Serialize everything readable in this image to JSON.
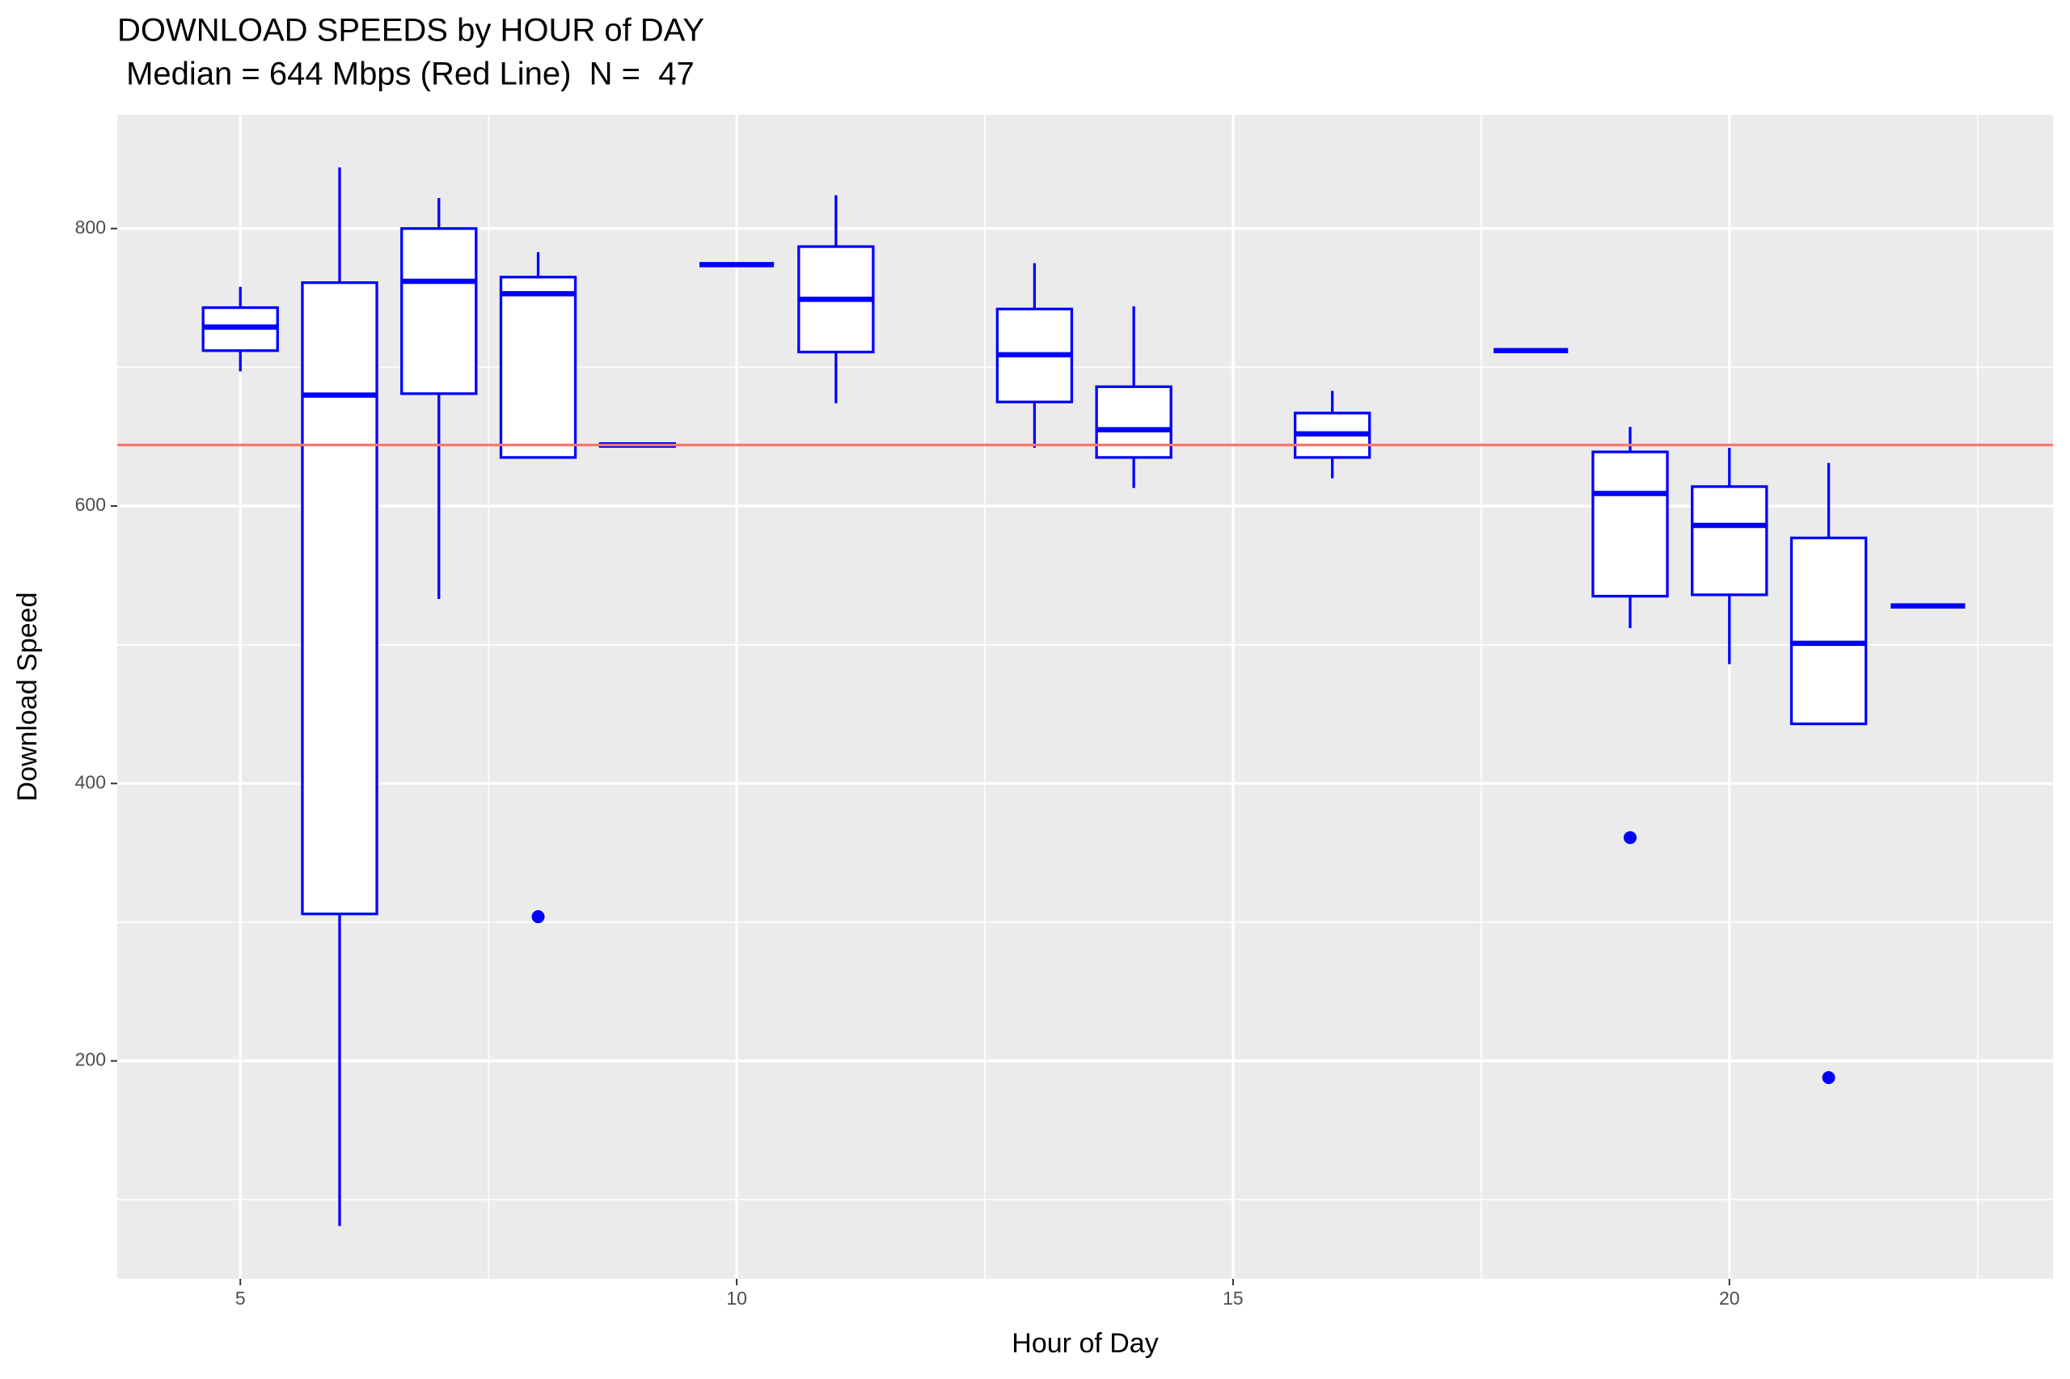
{
  "chart_data": {
    "type": "box",
    "title": "DOWNLOAD SPEEDS by HOUR of DAY",
    "subtitle": " Median = 644 Mbps (Red Line)  N =  47",
    "x_label": "Hour of Day",
    "y_label": "Download Speed",
    "x": [
      5,
      6,
      7,
      8,
      9,
      10,
      11,
      13,
      14,
      16,
      18,
      19,
      20,
      21,
      22
    ],
    "min": [
      697,
      81,
      533,
      635,
      643,
      774,
      674,
      642,
      613,
      620,
      712,
      512,
      486,
      443,
      528
    ],
    "q1": [
      712,
      306,
      681,
      635,
      643,
      774,
      711,
      675,
      635,
      635,
      712,
      535,
      536,
      443,
      528
    ],
    "median": [
      729,
      680,
      762,
      753,
      644,
      774,
      749,
      709,
      655,
      652,
      712,
      609,
      586,
      501,
      528
    ],
    "q3": [
      743,
      761,
      800,
      765,
      645,
      774,
      787,
      742,
      686,
      667,
      712,
      639,
      614,
      577,
      528
    ],
    "max": [
      758,
      844,
      822,
      783,
      645,
      774,
      824,
      775,
      744,
      683,
      712,
      657,
      642,
      631,
      528
    ],
    "outliers": {
      "x": [
        8,
        19,
        21
      ],
      "y": [
        304,
        361,
        188
      ]
    },
    "color": "#0000ff",
    "hline": 644,
    "hline_color": "#f8766d",
    "xlim": [
      3.76,
      23.26
    ],
    "ylim": [
      43,
      882
    ],
    "xticks": [
      5,
      10,
      15,
      20
    ],
    "yticks": [
      200,
      400,
      600,
      800
    ],
    "xminor": [
      7.5,
      12.5,
      17.5,
      22.5
    ],
    "yminor": [
      100,
      300,
      500,
      700
    ],
    "grid": true
  }
}
